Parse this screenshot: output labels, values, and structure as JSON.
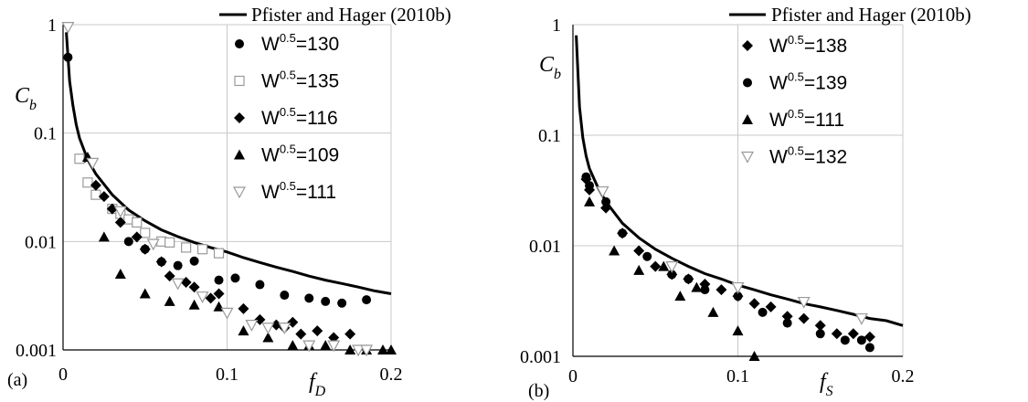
{
  "chart_data": [
    {
      "type": "scatter",
      "panel_label": "(a)",
      "y_symbol": "C",
      "y_symbol_sub": "b",
      "x_symbol": "f",
      "x_symbol_sub": "D",
      "xlim": [
        0,
        0.2
      ],
      "ylim": [
        0.001,
        1
      ],
      "yscale": "log",
      "grid": true,
      "legend_position": "top-right",
      "x_ticks": [
        {
          "value": 0,
          "label": "0"
        },
        {
          "value": 0.1,
          "label": "0.1"
        },
        {
          "value": 0.2,
          "label": "0.2"
        }
      ],
      "y_ticks": [
        {
          "value": 1,
          "label": "1"
        },
        {
          "value": 0.1,
          "label": "0.1"
        },
        {
          "value": 0.01,
          "label": "0.01"
        },
        {
          "value": 0.001,
          "label": "0.001"
        }
      ],
      "curve": {
        "name": "Pfister and Hager (2010b)",
        "x": [
          0.002,
          0.004,
          0.006,
          0.008,
          0.01,
          0.015,
          0.02,
          0.03,
          0.04,
          0.05,
          0.06,
          0.07,
          0.08,
          0.09,
          0.1,
          0.11,
          0.12,
          0.13,
          0.14,
          0.15,
          0.16,
          0.17,
          0.18,
          0.19,
          0.2
        ],
        "y": [
          0.85,
          0.3,
          0.18,
          0.12,
          0.09,
          0.057,
          0.042,
          0.027,
          0.0195,
          0.0155,
          0.0128,
          0.0111,
          0.0098,
          0.0088,
          0.008,
          0.0071,
          0.0064,
          0.0058,
          0.0053,
          0.0048,
          0.0044,
          0.0041,
          0.0038,
          0.0035,
          0.0033
        ]
      },
      "series": [
        {
          "name": "W",
          "name_sup": "0.5",
          "name_value": "=130",
          "marker": "circle",
          "x": [
            0.003,
            0.012,
            0.04,
            0.05,
            0.06,
            0.07,
            0.08,
            0.095,
            0.105,
            0.12,
            0.135,
            0.15,
            0.16,
            0.17,
            0.185
          ],
          "y": [
            0.5,
            0.058,
            0.01,
            0.0085,
            0.0065,
            0.006,
            0.0066,
            0.0044,
            0.0046,
            0.004,
            0.0032,
            0.003,
            0.0028,
            0.0027,
            0.0029
          ]
        },
        {
          "name": "W",
          "name_sup": "0.5",
          "name_value": "=135",
          "marker": "square",
          "x": [
            0.01,
            0.015,
            0.02,
            0.03,
            0.035,
            0.04,
            0.045,
            0.05,
            0.06,
            0.065,
            0.075,
            0.085,
            0.095
          ],
          "y": [
            0.058,
            0.035,
            0.027,
            0.02,
            0.018,
            0.016,
            0.015,
            0.012,
            0.01,
            0.0098,
            0.0088,
            0.0085,
            0.0078
          ]
        },
        {
          "name": "W",
          "name_sup": "0.5",
          "name_value": "=116",
          "marker": "diamond",
          "x": [
            0.02,
            0.025,
            0.03,
            0.035,
            0.045,
            0.05,
            0.06,
            0.065,
            0.075,
            0.08,
            0.09,
            0.095,
            0.11,
            0.12,
            0.13,
            0.135,
            0.14,
            0.145,
            0.155,
            0.165,
            0.175
          ],
          "y": [
            0.033,
            0.026,
            0.02,
            0.015,
            0.011,
            0.0085,
            0.0065,
            0.0048,
            0.0042,
            0.0038,
            0.003,
            0.0033,
            0.0024,
            0.0019,
            0.0017,
            0.0016,
            0.0018,
            0.0014,
            0.0015,
            0.0013,
            0.0014
          ]
        },
        {
          "name": "W",
          "name_sup": "0.5",
          "name_value": "=109",
          "marker": "triangle",
          "x": [
            0.015,
            0.025,
            0.035,
            0.05,
            0.065,
            0.08,
            0.095,
            0.11,
            0.125,
            0.14,
            0.15,
            0.16,
            0.175,
            0.185,
            0.195,
            0.2
          ],
          "y": [
            0.06,
            0.011,
            0.005,
            0.0033,
            0.0028,
            0.0026,
            0.0025,
            0.0015,
            0.0013,
            0.0011,
            0.0011,
            0.0011,
            0.001,
            0.001,
            0.001,
            0.001
          ]
        },
        {
          "name": "W",
          "name_sup": "0.5",
          "name_value": "=111",
          "marker": "triangle-down",
          "x": [
            0.003,
            0.018,
            0.035,
            0.055,
            0.07,
            0.085,
            0.1,
            0.115,
            0.125,
            0.135,
            0.15,
            0.165,
            0.18,
            0.185
          ],
          "y": [
            0.95,
            0.053,
            0.019,
            0.0095,
            0.0041,
            0.0031,
            0.0022,
            0.0017,
            0.0016,
            0.0016,
            0.0011,
            0.0011,
            0.001,
            0.001
          ]
        }
      ]
    },
    {
      "type": "scatter",
      "panel_label": "(b)",
      "y_symbol": "C",
      "y_symbol_sub": "b",
      "x_symbol": "f",
      "x_symbol_sub": "S",
      "xlim": [
        0,
        0.2
      ],
      "ylim": [
        0.001,
        1
      ],
      "yscale": "log",
      "grid": true,
      "legend_position": "top-right",
      "x_ticks": [
        {
          "value": 0,
          "label": "0"
        },
        {
          "value": 0.1,
          "label": "0.1"
        },
        {
          "value": 0.2,
          "label": "0.2"
        }
      ],
      "y_ticks": [
        {
          "value": 1,
          "label": "1"
        },
        {
          "value": 0.1,
          "label": "0.1"
        },
        {
          "value": 0.01,
          "label": "0.01"
        },
        {
          "value": 0.001,
          "label": "0.001"
        }
      ],
      "curve": {
        "name": "Pfister and Hager (2010b)",
        "x": [
          0.002,
          0.004,
          0.006,
          0.008,
          0.01,
          0.015,
          0.02,
          0.03,
          0.04,
          0.05,
          0.06,
          0.07,
          0.08,
          0.09,
          0.1,
          0.11,
          0.12,
          0.13,
          0.14,
          0.15,
          0.16,
          0.17,
          0.18,
          0.19,
          0.2
        ],
        "y": [
          0.8,
          0.18,
          0.095,
          0.065,
          0.05,
          0.034,
          0.025,
          0.016,
          0.0118,
          0.0093,
          0.0077,
          0.0065,
          0.0056,
          0.005,
          0.0044,
          0.004,
          0.0036,
          0.0033,
          0.003,
          0.0028,
          0.0026,
          0.0024,
          0.0022,
          0.0021,
          0.0019
        ]
      },
      "series": [
        {
          "name": "W",
          "name_sup": "0.5",
          "name_value": "=138",
          "marker": "diamond",
          "x": [
            0.008,
            0.01,
            0.02,
            0.03,
            0.04,
            0.05,
            0.06,
            0.07,
            0.08,
            0.09,
            0.1,
            0.11,
            0.12,
            0.13,
            0.14,
            0.15,
            0.16,
            0.17,
            0.18
          ],
          "y": [
            0.04,
            0.032,
            0.022,
            0.013,
            0.009,
            0.0065,
            0.0055,
            0.005,
            0.0045,
            0.004,
            0.0035,
            0.003,
            0.0028,
            0.0023,
            0.0022,
            0.0019,
            0.0016,
            0.0016,
            0.0015
          ]
        },
        {
          "name": "W",
          "name_sup": "0.5",
          "name_value": "=139",
          "marker": "circle",
          "x": [
            0.008,
            0.01,
            0.02,
            0.03,
            0.045,
            0.06,
            0.07,
            0.08,
            0.1,
            0.115,
            0.13,
            0.15,
            0.165,
            0.175,
            0.18
          ],
          "y": [
            0.042,
            0.035,
            0.025,
            0.013,
            0.008,
            0.0055,
            0.005,
            0.004,
            0.0035,
            0.0025,
            0.002,
            0.0016,
            0.0014,
            0.0014,
            0.0012
          ]
        },
        {
          "name": "W",
          "name_sup": "0.5",
          "name_value": "=111",
          "marker": "triangle",
          "x": [
            0.01,
            0.025,
            0.04,
            0.055,
            0.065,
            0.075,
            0.085,
            0.1,
            0.11
          ],
          "y": [
            0.025,
            0.009,
            0.006,
            0.0065,
            0.0035,
            0.0042,
            0.0025,
            0.0017,
            0.001
          ]
        },
        {
          "name": "W",
          "name_sup": "0.5",
          "name_value": "=132",
          "marker": "triangle-down",
          "x": [
            0.018,
            0.06,
            0.1,
            0.14,
            0.175
          ],
          "y": [
            0.031,
            0.0065,
            0.0042,
            0.0031,
            0.0022
          ]
        }
      ]
    }
  ]
}
